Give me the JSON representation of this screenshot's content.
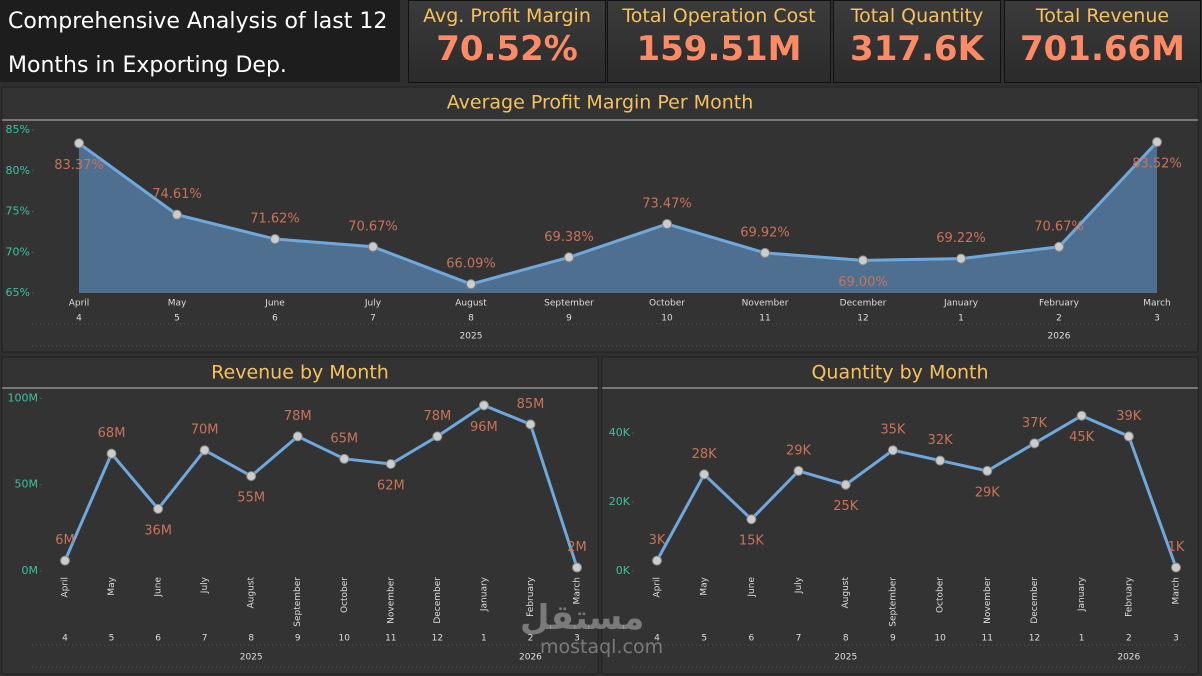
{
  "header": {
    "title": "Comprehensive Analysis of last 12 Months in Exporting Dep."
  },
  "kpis": [
    {
      "label": "Avg. Profit Margin",
      "value": "70.52%"
    },
    {
      "label": "Total Operation Cost",
      "value": "159.51M"
    },
    {
      "label": "Total Quantity",
      "value": "317.6K"
    },
    {
      "label": "Total Revenue",
      "value": "701.66M"
    }
  ],
  "watermark": {
    "arabic": "مستقل",
    "latin": "mostaql.com"
  },
  "chart_data": [
    {
      "type": "area",
      "title": "Average Profit Margin Per Month",
      "categories": [
        "April",
        "May",
        "June",
        "July",
        "August",
        "September",
        "October",
        "November",
        "December",
        "January",
        "February",
        "March"
      ],
      "month_numbers": [
        "4",
        "5",
        "6",
        "7",
        "8",
        "9",
        "10",
        "11",
        "12",
        "1",
        "2",
        "3"
      ],
      "years": [
        "2025",
        "2026"
      ],
      "values": [
        83.37,
        74.61,
        71.62,
        70.67,
        66.09,
        69.38,
        73.47,
        69.92,
        69.0,
        69.22,
        70.67,
        83.52
      ],
      "value_labels": [
        "83.37%",
        "74.61%",
        "71.62%",
        "70.67%",
        "66.09%",
        "69.38%",
        "73.47%",
        "69.92%",
        "69.00%",
        "69.22%",
        "70.67%",
        "83.52%"
      ],
      "ylim": [
        65,
        85
      ],
      "yticks": [
        {
          "value": 65,
          "label": "65%"
        },
        {
          "value": 70,
          "label": "70%"
        },
        {
          "value": 75,
          "label": "75%"
        },
        {
          "value": 80,
          "label": "80%"
        },
        {
          "value": 85,
          "label": "85%"
        }
      ],
      "color": "#6fa8dc",
      "area_color": "#4e6f8f"
    },
    {
      "type": "line",
      "title": "Revenue by Month",
      "categories": [
        "April",
        "May",
        "June",
        "July",
        "August",
        "September",
        "October",
        "November",
        "December",
        "January",
        "February",
        "March"
      ],
      "month_numbers": [
        "4",
        "5",
        "6",
        "7",
        "8",
        "9",
        "10",
        "11",
        "12",
        "1",
        "2",
        "3"
      ],
      "years": [
        "2025",
        "2026"
      ],
      "values": [
        6,
        68,
        36,
        70,
        55,
        78,
        65,
        62,
        78,
        96,
        85,
        2
      ],
      "value_labels": [
        "6M",
        "68M",
        "36M",
        "70M",
        "55M",
        "78M",
        "65M",
        "62M",
        "78M",
        "96M",
        "85M",
        "2M"
      ],
      "ylim": [
        0,
        102
      ],
      "yticks": [
        {
          "value": 0,
          "label": "0M"
        },
        {
          "value": 50,
          "label": "50M"
        },
        {
          "value": 100,
          "label": "100M"
        }
      ],
      "color": "#6fa8dc"
    },
    {
      "type": "line",
      "title": "Quantity by Month",
      "categories": [
        "April",
        "May",
        "June",
        "July",
        "August",
        "September",
        "October",
        "November",
        "December",
        "January",
        "February",
        "March"
      ],
      "month_numbers": [
        "4",
        "5",
        "6",
        "7",
        "8",
        "9",
        "10",
        "11",
        "12",
        "1",
        "2",
        "3"
      ],
      "years": [
        "2025",
        "2026"
      ],
      "values": [
        3,
        28,
        15,
        29,
        25,
        35,
        32,
        29,
        37,
        45,
        39,
        1
      ],
      "value_labels": [
        "3K",
        "28K",
        "15K",
        "29K",
        "25K",
        "35K",
        "32K",
        "29K",
        "37K",
        "45K",
        "39K",
        "1K"
      ],
      "ylim": [
        0,
        51
      ],
      "yticks": [
        {
          "value": 0,
          "label": "0K"
        },
        {
          "value": 20,
          "label": "20K"
        },
        {
          "value": 40,
          "label": "40K"
        }
      ],
      "color": "#6fa8dc"
    }
  ]
}
